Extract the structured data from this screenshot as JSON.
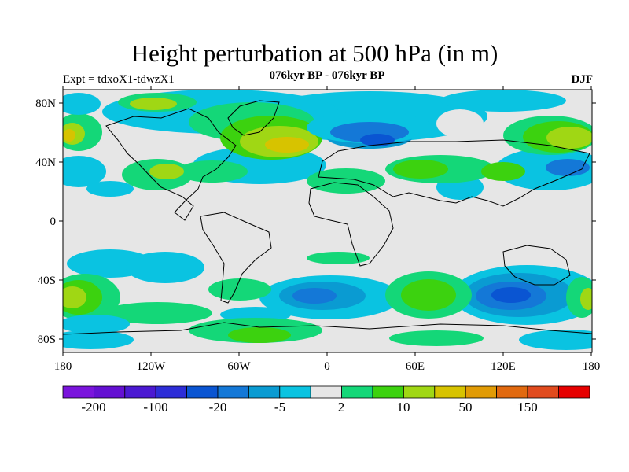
{
  "title": "Height perturbation at 500 hPa (in m)",
  "subtitle_left": "Expt = tdxoX1-tdwzX1",
  "subtitle_center": "076kyr BP - 076kyr BP",
  "subtitle_right": "DJF",
  "lat_ticks": [
    "80N",
    "40N",
    "0",
    "40S",
    "80S"
  ],
  "lon_ticks": [
    "180",
    "120W",
    "60W",
    "0",
    "60E",
    "120E",
    "180"
  ],
  "colorbar": {
    "colors": [
      "#7a14dc",
      "#6410d2",
      "#4b19d2",
      "#2d2dd7",
      "#0a55d2",
      "#1478d7",
      "#0a9bd2",
      "#0ac3e1",
      "#e6e6e6",
      "#14d778",
      "#3cd20f",
      "#a0d714",
      "#d7c300",
      "#e19b05",
      "#e1690f",
      "#e14b1e",
      "#e60000"
    ],
    "labels": [
      "-200",
      "-100",
      "-20",
      "-5",
      "2",
      "10",
      "50",
      "150"
    ]
  },
  "palette": {
    "neutral": "#e6e6e6",
    "cyan": "#0ac3e1",
    "lightblue": "#0a9bd2",
    "blue": "#1478d7",
    "darkblue": "#0a55d2",
    "green": "#14d778",
    "brightgreen": "#3cd20f",
    "yellowgreen": "#a0d714",
    "gold": "#d7c300",
    "coast": "#000000"
  }
}
